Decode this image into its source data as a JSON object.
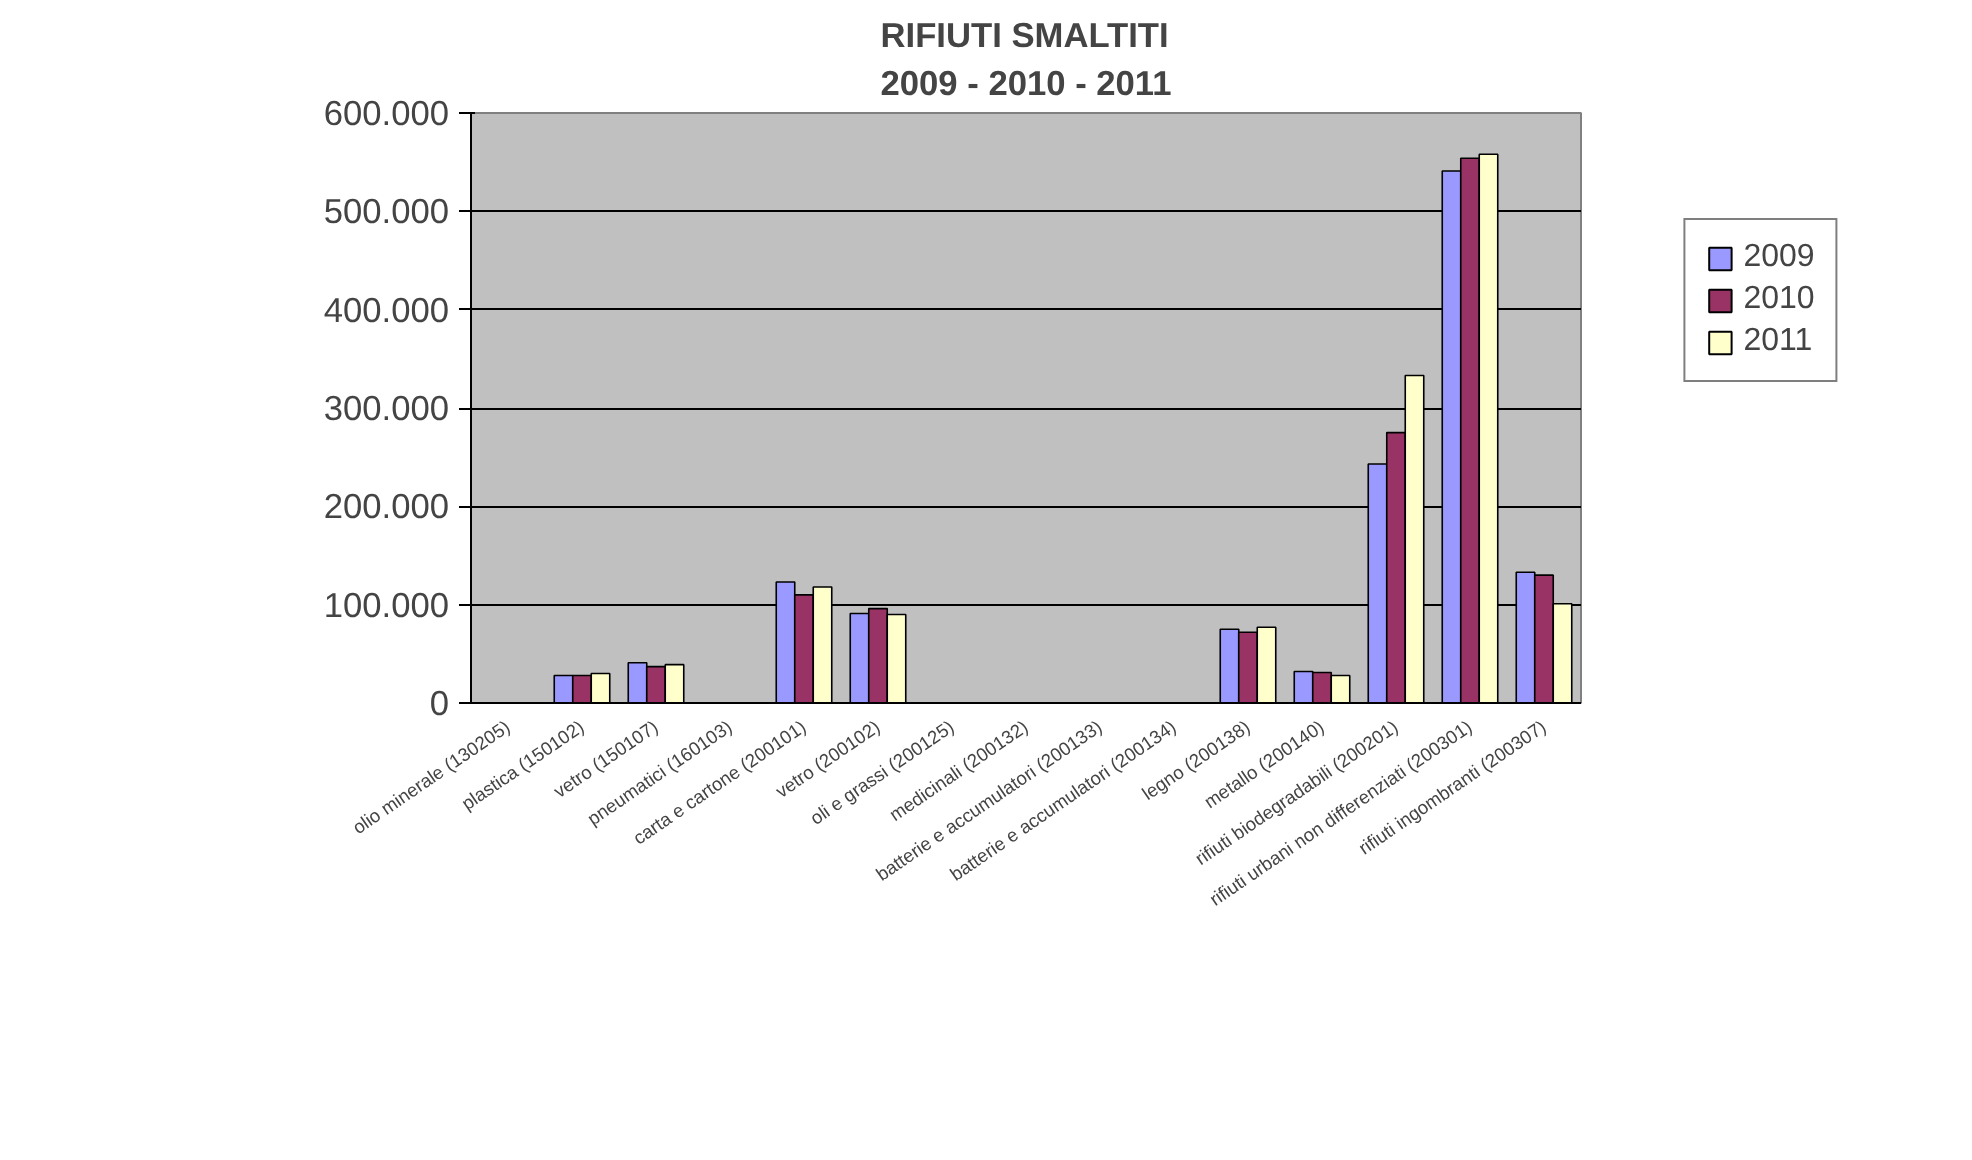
{
  "chart_data": {
    "type": "bar",
    "title": "RIFIUTI SMALTITI\n2009 - 2010 - 2011",
    "categories": [
      "olio minerale (130205)",
      "plastica (150102)",
      "vetro (150107)",
      "pneumatici (160103)",
      "carta e cartone (200101)",
      "vetro (200102)",
      "oli e grassi (200125)",
      "medicinali (200132)",
      "batterie e accumulatori (200133)",
      "batterie e accumulatori (200134)",
      "legno (200138)",
      "metallo (200140)",
      "rifiuti biodegradabili (200201)",
      "rifiuti urbani non differenziati (200301)",
      "rifiuti ingombranti (200307)"
    ],
    "series": [
      {
        "name": "2009",
        "color": "#9999ff",
        "values": [
          null,
          28000,
          41000,
          null,
          123000,
          91000,
          null,
          null,
          null,
          null,
          75000,
          32000,
          243000,
          541000,
          133000
        ]
      },
      {
        "name": "2010",
        "color": "#993366",
        "values": [
          null,
          28000,
          37000,
          null,
          110000,
          96000,
          null,
          null,
          null,
          null,
          72000,
          31000,
          275000,
          554000,
          130000
        ]
      },
      {
        "name": "2011",
        "color": "#ffffcc",
        "values": [
          null,
          30000,
          39000,
          null,
          118000,
          90000,
          null,
          null,
          null,
          null,
          77000,
          28000,
          333000,
          558000,
          101000
        ]
      }
    ],
    "ylim": [
      0,
      600000
    ],
    "yticks": [
      {
        "value": 0,
        "label": "0"
      },
      {
        "value": 100000,
        "label": "100.000"
      },
      {
        "value": 200000,
        "label": "200.000"
      },
      {
        "value": 300000,
        "label": "300.000"
      },
      {
        "value": 400000,
        "label": "400.000"
      },
      {
        "value": 500000,
        "label": "500.000"
      },
      {
        "value": 600000,
        "label": "600.000"
      }
    ],
    "grid": "y",
    "legend": "right"
  }
}
